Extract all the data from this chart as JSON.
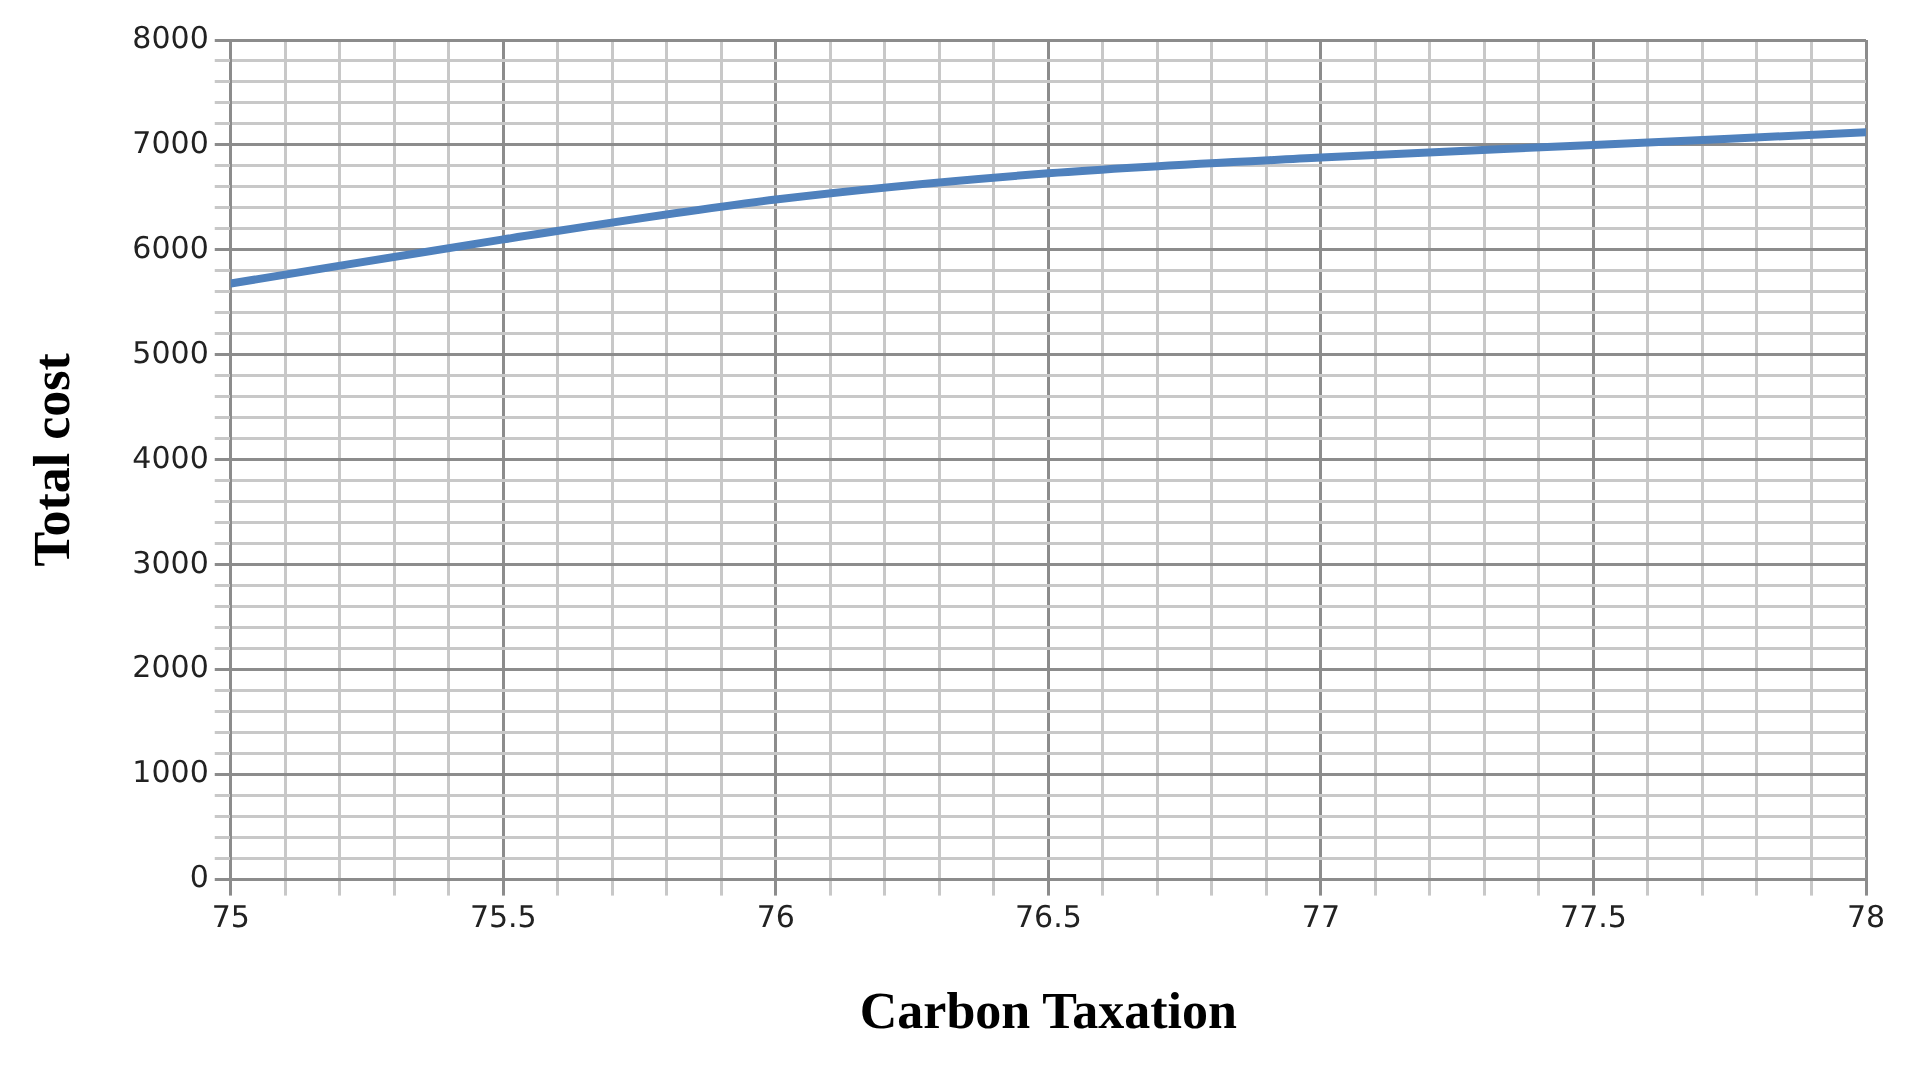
{
  "chart_data": {
    "type": "line",
    "xlabel": "Carbon Taxation",
    "ylabel": "Total cost",
    "x": [
      75,
      75.5,
      76,
      76.5,
      77,
      77.5,
      78
    ],
    "series": [
      {
        "color": "#4f81bd",
        "values": [
          5680,
          6100,
          6480,
          6730,
          6880,
          7000,
          7120
        ]
      }
    ],
    "xlim": [
      75,
      78
    ],
    "ylim": [
      0,
      8000
    ],
    "xticks": [
      75,
      {
        "value": 75.1,
        "label": null
      },
      {
        "value": 75.2,
        "label": null
      },
      {
        "value": 75.3,
        "label": null
      },
      {
        "value": 75.4,
        "label": null
      },
      75.5,
      {
        "value": 75.6,
        "label": null
      },
      {
        "value": 75.7,
        "label": null
      },
      {
        "value": 75.8,
        "label": null
      },
      {
        "value": 75.9,
        "label": null
      },
      76,
      {
        "value": 76.1,
        "label": null
      },
      {
        "value": 76.2,
        "label": null
      },
      {
        "value": 76.3,
        "label": null
      },
      {
        "value": 76.4,
        "label": null
      },
      76.5,
      {
        "value": 76.6,
        "label": null
      },
      {
        "value": 76.7,
        "label": null
      },
      {
        "value": 76.8,
        "label": null
      },
      {
        "value": 76.9,
        "label": null
      },
      77,
      {
        "value": 77.1,
        "label": null
      },
      {
        "value": 77.2,
        "label": null
      },
      {
        "value": 77.3,
        "label": null
      },
      {
        "value": 77.4,
        "label": null
      },
      77.5,
      {
        "value": 77.6,
        "label": null
      },
      {
        "value": 77.7,
        "label": null
      },
      {
        "value": 77.8,
        "label": null
      },
      {
        "value": 77.9,
        "label": null
      },
      78
    ],
    "yticks": [
      0,
      {
        "value": 200,
        "label": null
      },
      {
        "value": 400,
        "label": null
      },
      {
        "value": 600,
        "label": null
      },
      {
        "value": 800,
        "label": null
      },
      1000,
      {
        "value": 1200,
        "label": null
      },
      {
        "value": 1400,
        "label": null
      },
      {
        "value": 1600,
        "label": null
      },
      {
        "value": 1800,
        "label": null
      },
      2000,
      {
        "value": 2200,
        "label": null
      },
      {
        "value": 2400,
        "label": null
      },
      {
        "value": 2600,
        "label": null
      },
      {
        "value": 2800,
        "label": null
      },
      3000,
      {
        "value": 3200,
        "label": null
      },
      {
        "value": 3400,
        "label": null
      },
      {
        "value": 3600,
        "label": null
      },
      {
        "value": 3800,
        "label": null
      },
      4000,
      {
        "value": 4200,
        "label": null
      },
      {
        "value": 4400,
        "label": null
      },
      {
        "value": 4600,
        "label": null
      },
      {
        "value": 4800,
        "label": null
      },
      5000,
      {
        "value": 5200,
        "label": null
      },
      {
        "value": 5400,
        "label": null
      },
      {
        "value": 5600,
        "label": null
      },
      {
        "value": 5800,
        "label": null
      },
      6000,
      {
        "value": 6200,
        "label": null
      },
      {
        "value": 6400,
        "label": null
      },
      {
        "value": 6600,
        "label": null
      },
      {
        "value": 6800,
        "label": null
      },
      7000,
      {
        "value": 7200,
        "label": null
      },
      {
        "value": 7400,
        "label": null
      },
      {
        "value": 7600,
        "label": null
      },
      {
        "value": 7800,
        "label": null
      },
      8000
    ],
    "grid": true,
    "legend": false,
    "marker": "none",
    "line_style": "solid"
  }
}
